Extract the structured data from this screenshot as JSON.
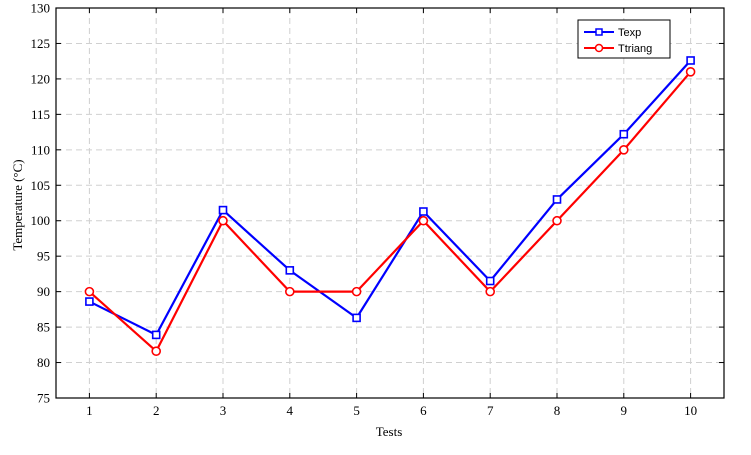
{
  "chart_data": {
    "type": "line",
    "title": "",
    "xlabel": "Tests",
    "ylabel": "Temperature (°C)",
    "x": [
      1,
      2,
      3,
      4,
      5,
      6,
      7,
      8,
      9,
      10
    ],
    "xlim": [
      0.5,
      10.5
    ],
    "ylim": [
      75,
      130
    ],
    "yticks": [
      75,
      80,
      85,
      90,
      95,
      100,
      105,
      110,
      115,
      120,
      125,
      130
    ],
    "grid": true,
    "legend_position": "top-right",
    "series": [
      {
        "name": "Texp",
        "color": "#0000ff",
        "marker": "square",
        "values": [
          88.6,
          83.9,
          101.5,
          93.0,
          86.3,
          101.3,
          91.5,
          103.0,
          112.2,
          122.6
        ]
      },
      {
        "name": "Ttriang",
        "color": "#ff0000",
        "marker": "circle",
        "values": [
          90.0,
          81.6,
          100.0,
          90.0,
          90.0,
          100.0,
          90.0,
          100.0,
          110.0,
          121.0
        ]
      }
    ]
  }
}
